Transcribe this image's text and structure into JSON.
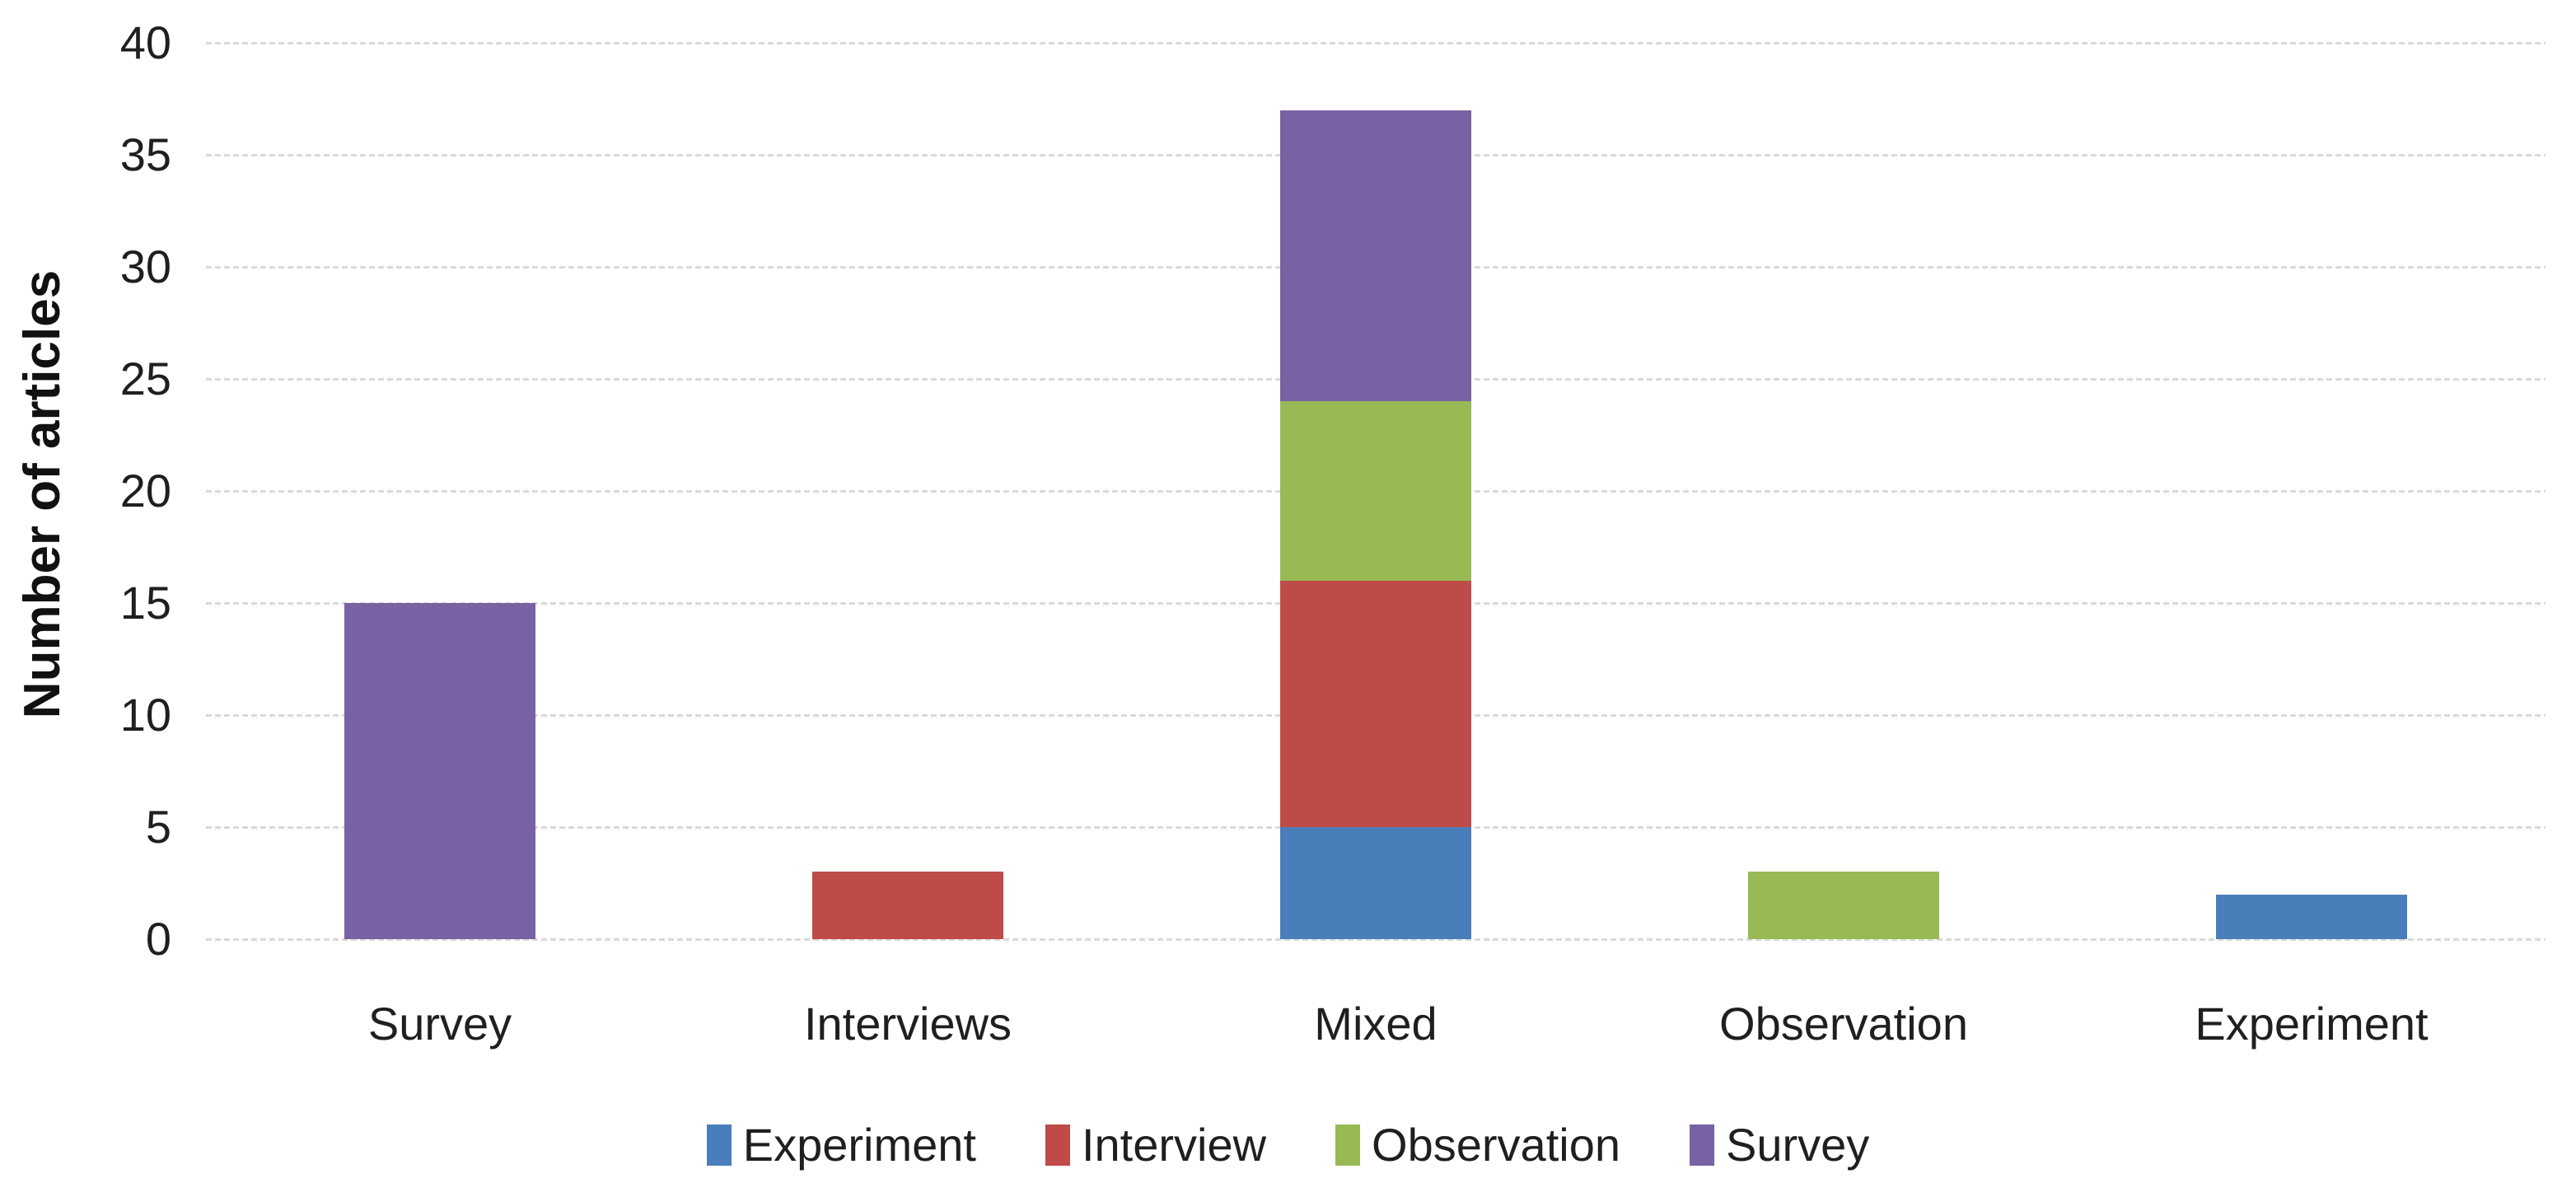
{
  "chart_data": {
    "type": "bar",
    "stacked": true,
    "title": "",
    "xlabel": "",
    "ylabel": "Number of articles",
    "ylim": [
      0,
      40
    ],
    "yticks": [
      0,
      5,
      10,
      15,
      20,
      25,
      30,
      35,
      40
    ],
    "grid": "horizontal-dashed",
    "legend_position": "bottom",
    "categories": [
      "Survey",
      "Interviews",
      "Mixed",
      "Observation",
      "Experiment"
    ],
    "series": [
      {
        "name": "Experiment",
        "color": "#4A7EBB",
        "values": [
          0,
          0,
          5,
          0,
          2
        ]
      },
      {
        "name": "Interview",
        "color": "#BE4B48",
        "values": [
          0,
          3,
          11,
          0,
          0
        ]
      },
      {
        "name": "Observation",
        "color": "#98B954",
        "values": [
          0,
          0,
          8,
          3,
          0
        ]
      },
      {
        "name": "Survey",
        "color": "#7862A3",
        "values": [
          15,
          0,
          13,
          0,
          0
        ]
      }
    ],
    "category_totals": {
      "Survey": 15,
      "Interviews": 3,
      "Mixed": 37,
      "Observation": 3,
      "Experiment": 2
    }
  },
  "colors": {
    "background": "#ffffff",
    "gridline": "#d9d9d9",
    "text": "#1f1f1f"
  }
}
